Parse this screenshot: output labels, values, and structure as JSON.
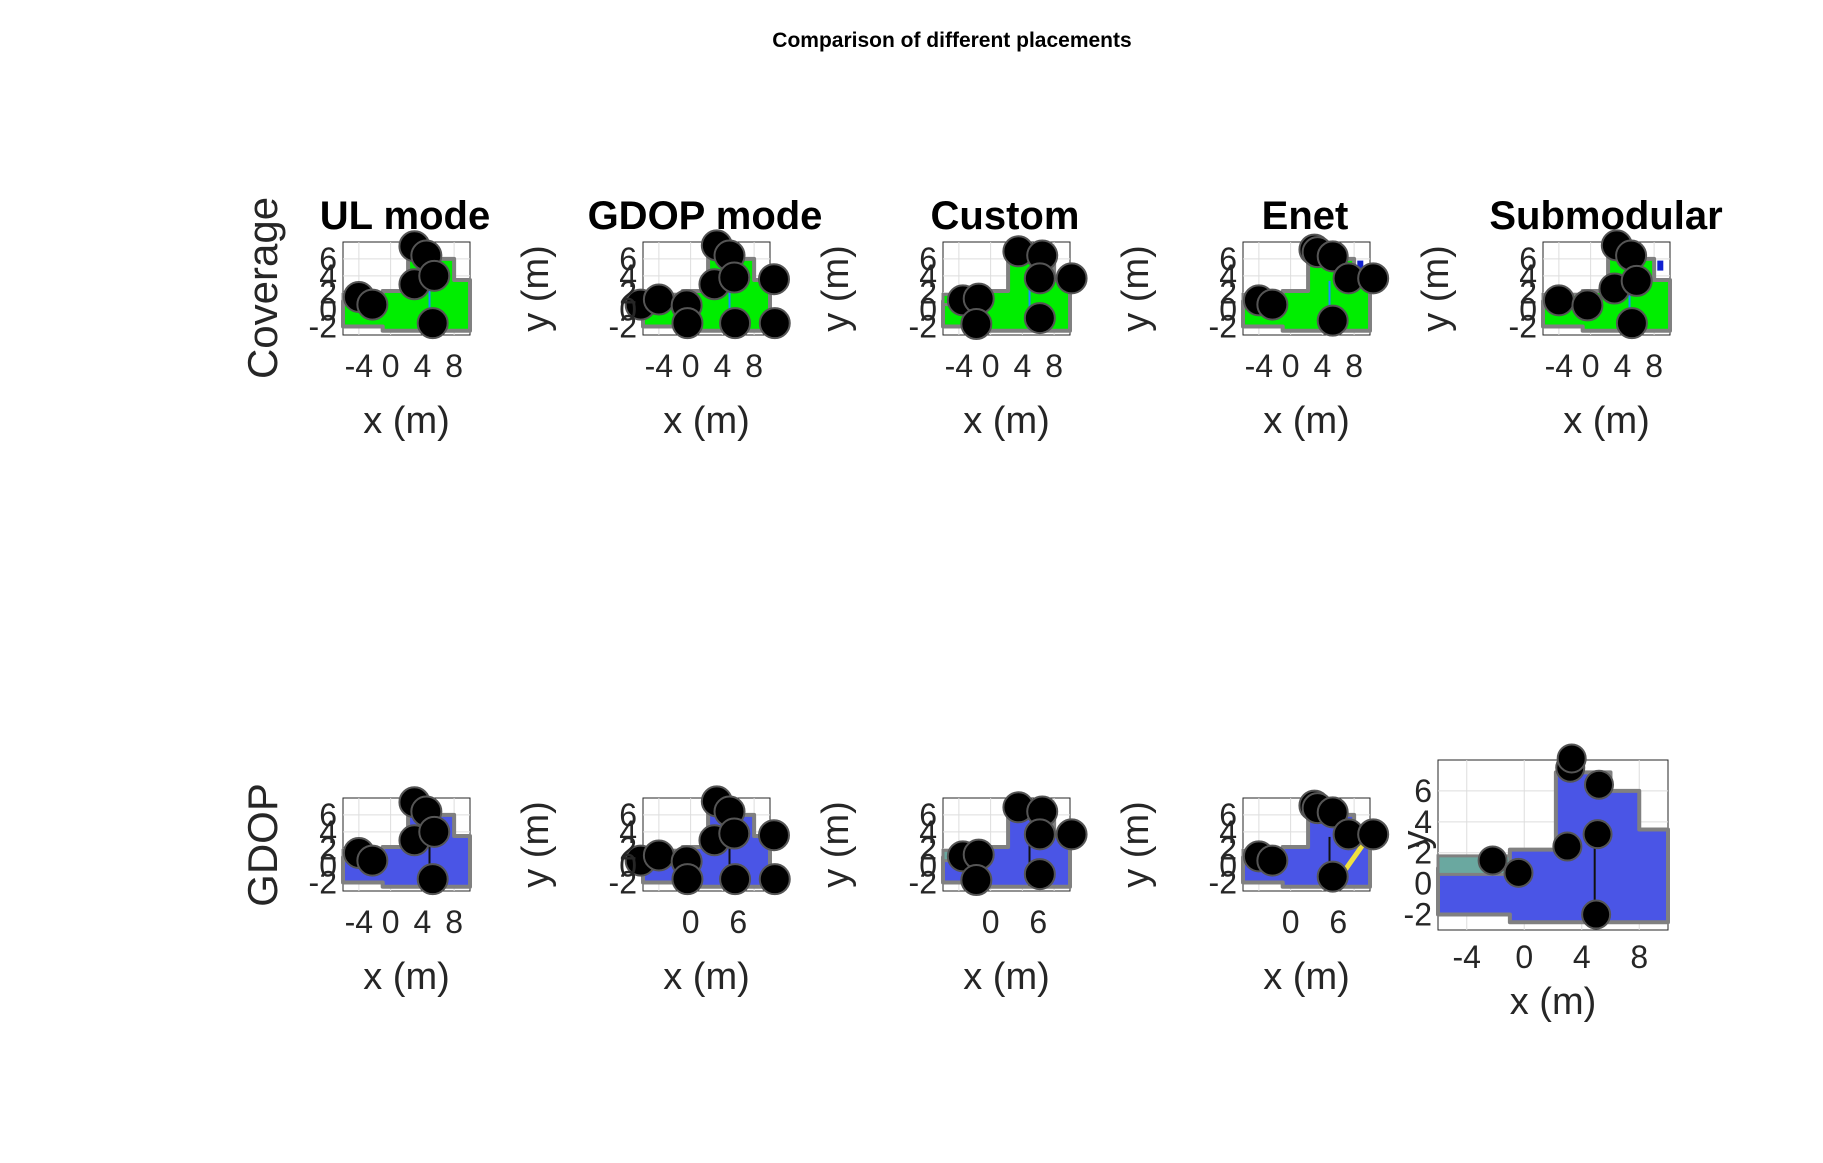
{
  "figure": {
    "suptitle": "Comparison of different placements",
    "row_labels": [
      "Coverage",
      "GDOP"
    ]
  },
  "colors": {
    "coverage_fill": "#00ee00",
    "gdop_fill": "#4a55e6",
    "wall": "#808080",
    "anchor": "#000000",
    "anchor_edge": "#555555",
    "weak_coverage": "#1020d0",
    "ap_marker": "#30d0e0",
    "custom_marker": "#f0e040"
  },
  "chart_data": [
    {
      "type": "heatmap",
      "row": "Coverage",
      "title": "UL mode",
      "xlabel": "x (m)",
      "ylabel": "",
      "xticks": [
        "-4",
        "0",
        "4",
        "8"
      ],
      "yticks": [
        "6",
        "4",
        "2",
        "0",
        "-2"
      ],
      "xlim": [
        -6,
        10
      ],
      "ylim": [
        -3,
        8
      ],
      "anchors": [
        [
          -4,
          1.5
        ],
        [
          -2.3,
          0.6
        ],
        [
          3,
          3
        ],
        [
          3,
          7.5
        ],
        [
          4.5,
          6.4
        ],
        [
          5.5,
          4
        ],
        [
          5.3,
          -1.6
        ]
      ]
    },
    {
      "type": "heatmap",
      "row": "Coverage",
      "title": "GDOP mode",
      "xlabel": "x (m)",
      "ylabel": "y (m)",
      "xticks": [
        "-4",
        "0",
        "4",
        "8"
      ],
      "yticks": [
        "6",
        "4",
        "2",
        "0",
        "-2"
      ],
      "xlim": [
        -6,
        10
      ],
      "ylim": [
        -3,
        8
      ],
      "anchors": [
        [
          -6.3,
          0.6
        ],
        [
          -4,
          1.2
        ],
        [
          -0.5,
          0.5
        ],
        [
          -0.4,
          -1.6
        ],
        [
          3,
          3
        ],
        [
          3.3,
          7.6
        ],
        [
          4.9,
          6.4
        ],
        [
          5.5,
          3.8
        ],
        [
          5.6,
          -1.6
        ],
        [
          10.5,
          3.6
        ],
        [
          10.6,
          -1.6
        ]
      ]
    },
    {
      "type": "heatmap",
      "row": "Coverage",
      "title": "Custom",
      "xlabel": "x (m)",
      "ylabel": "y (m)",
      "xticks": [
        "-4",
        "0",
        "4",
        "8"
      ],
      "yticks": [
        "6",
        "4",
        "2",
        "0",
        "-2"
      ],
      "xlim": [
        -6,
        10
      ],
      "ylim": [
        -3,
        8
      ],
      "anchors": [
        [
          -3.5,
          1.1
        ],
        [
          -1.5,
          1.3
        ],
        [
          -1.8,
          -1.7
        ],
        [
          3.5,
          6.9
        ],
        [
          6.5,
          6.4
        ],
        [
          6.2,
          3.7
        ],
        [
          6.2,
          -1.0
        ],
        [
          10.2,
          3.7
        ]
      ]
    },
    {
      "type": "heatmap",
      "row": "Coverage",
      "title": "Enet",
      "xlabel": "x (m)",
      "ylabel": "y (m)",
      "xticks": [
        "-4",
        "0",
        "4",
        "8"
      ],
      "yticks": [
        "6",
        "4",
        "2",
        "0",
        "-2"
      ],
      "xlim": [
        -6,
        10
      ],
      "ylim": [
        -3,
        8
      ],
      "anchors": [
        [
          -4,
          1.1
        ],
        [
          -2.3,
          0.6
        ],
        [
          3,
          7.1
        ],
        [
          3.4,
          6.8
        ],
        [
          5.3,
          6.3
        ],
        [
          7.3,
          3.7
        ],
        [
          10.4,
          3.7
        ],
        [
          5.3,
          -1.3
        ]
      ]
    },
    {
      "type": "heatmap",
      "row": "Coverage",
      "title": "Submodular",
      "xlabel": "x (m)",
      "ylabel": "y (m)",
      "xticks": [
        "-4",
        "0",
        "4",
        "8"
      ],
      "yticks": [
        "6",
        "4",
        "2",
        "0",
        "-2"
      ],
      "xlim": [
        -6,
        10
      ],
      "ylim": [
        -3,
        8
      ],
      "anchors": [
        [
          -4,
          1.1
        ],
        [
          -0.4,
          0.5
        ],
        [
          3,
          2.5
        ],
        [
          3.3,
          7.6
        ],
        [
          5.1,
          6.4
        ],
        [
          5.8,
          3.4
        ],
        [
          5.2,
          -1.6
        ]
      ]
    },
    {
      "type": "heatmap",
      "row": "GDOP",
      "title": "",
      "xlabel": "x (m)",
      "ylabel": "",
      "xticks": [
        "-4",
        "0",
        "4",
        "8"
      ],
      "yticks": [
        "6",
        "4",
        "2",
        "0",
        "-2"
      ],
      "xlim": [
        -6,
        10
      ],
      "ylim": [
        -3,
        8
      ],
      "anchors": [
        [
          -4,
          1.5
        ],
        [
          -2.3,
          0.6
        ],
        [
          3,
          3
        ],
        [
          3,
          7.5
        ],
        [
          4.5,
          6.4
        ],
        [
          5.5,
          4
        ],
        [
          5.3,
          -1.6
        ]
      ]
    },
    {
      "type": "heatmap",
      "row": "GDOP",
      "title": "",
      "xlabel": "x (m)",
      "ylabel": "y (m)",
      "xticks": [
        "0",
        "6"
      ],
      "yticks": [
        "6",
        "4",
        "2",
        "0",
        "-2"
      ],
      "xlim": [
        -6,
        10
      ],
      "ylim": [
        -3,
        8
      ],
      "anchors": [
        [
          -6.3,
          0.6
        ],
        [
          -4,
          1.2
        ],
        [
          -0.5,
          0.5
        ],
        [
          -0.4,
          -1.6
        ],
        [
          3,
          3
        ],
        [
          3.3,
          7.6
        ],
        [
          4.9,
          6.4
        ],
        [
          5.5,
          3.8
        ],
        [
          5.6,
          -1.6
        ],
        [
          10.5,
          3.6
        ],
        [
          10.6,
          -1.6
        ]
      ]
    },
    {
      "type": "heatmap",
      "row": "GDOP",
      "title": "",
      "xlabel": "x (m)",
      "ylabel": "y (m)",
      "xticks": [
        "0",
        "6"
      ],
      "yticks": [
        "6",
        "4",
        "2",
        "0",
        "-2"
      ],
      "xlim": [
        -6,
        10
      ],
      "ylim": [
        -3,
        8
      ],
      "anchors": [
        [
          -3.5,
          1.1
        ],
        [
          -1.5,
          1.3
        ],
        [
          -1.8,
          -1.7
        ],
        [
          3.5,
          6.9
        ],
        [
          6.5,
          6.4
        ],
        [
          6.2,
          3.7
        ],
        [
          6.2,
          -1.0
        ],
        [
          10.2,
          3.7
        ]
      ]
    },
    {
      "type": "heatmap",
      "row": "GDOP",
      "title": "",
      "xlabel": "x (m)",
      "ylabel": "y (m)",
      "xticks": [
        "0",
        "6"
      ],
      "yticks": [
        "6",
        "4",
        "2",
        "0",
        "-2"
      ],
      "xlim": [
        -6,
        10
      ],
      "ylim": [
        -3,
        8
      ],
      "anchors": [
        [
          -4,
          1.1
        ],
        [
          -2.3,
          0.6
        ],
        [
          3,
          7.1
        ],
        [
          3.4,
          6.8
        ],
        [
          5.3,
          6.3
        ],
        [
          7.3,
          3.7
        ],
        [
          10.4,
          3.7
        ],
        [
          5.3,
          -1.3
        ]
      ]
    },
    {
      "type": "heatmap",
      "row": "GDOP",
      "title": "",
      "xlabel": "x (m)",
      "ylabel": "y",
      "xticks": [
        "-4",
        "0",
        "4",
        "8"
      ],
      "yticks": [
        "6",
        "4",
        "2",
        "0",
        "-2"
      ],
      "xlim": [
        -6,
        10
      ],
      "ylim": [
        -3,
        8
      ],
      "anchors": [
        [
          -2.2,
          1.5
        ],
        [
          -0.4,
          0.7
        ],
        [
          3,
          2.4
        ],
        [
          3.2,
          7.5
        ],
        [
          3.3,
          8.1
        ],
        [
          5.2,
          6.4
        ],
        [
          5.1,
          3.2
        ],
        [
          5,
          -2
        ]
      ]
    }
  ]
}
